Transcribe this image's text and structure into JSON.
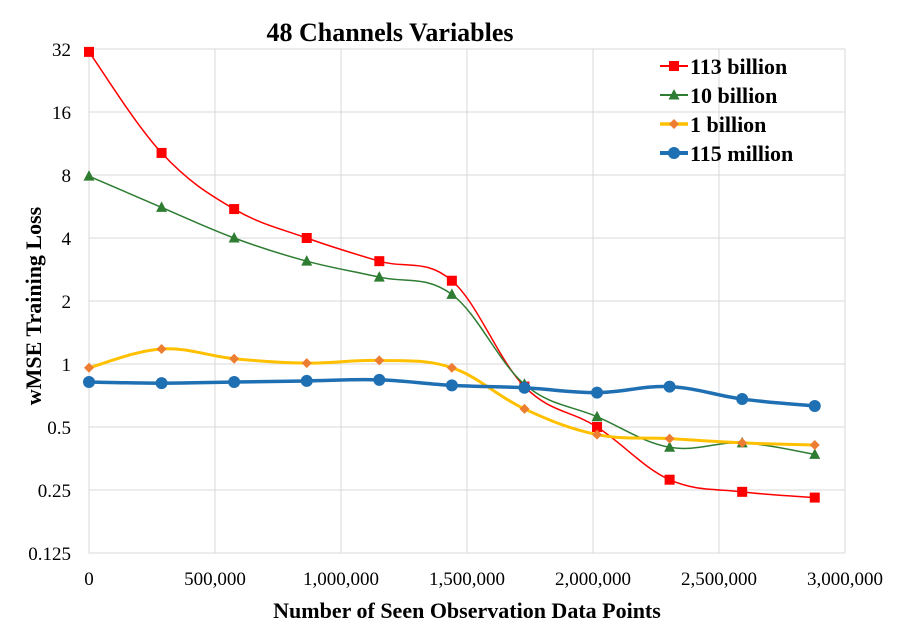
{
  "chart_data": {
    "type": "line",
    "title": "48 Channels Variables",
    "xlabel": "Number of Seen Observation Data Points",
    "ylabel": "wMSE Training Loss",
    "yscale": "log2",
    "xlim": [
      0,
      3000000
    ],
    "ylim": [
      0.125,
      32
    ],
    "x_ticks": [
      0,
      500000,
      1000000,
      1500000,
      2000000,
      2500000,
      3000000
    ],
    "x_tick_labels": [
      "0",
      "500,000",
      "1,000,000",
      "1,500,000",
      "2,000,000",
      "2,500,000",
      "3,000,000"
    ],
    "y_ticks": [
      0.125,
      0.25,
      0.5,
      1,
      2,
      4,
      8,
      16,
      32
    ],
    "y_tick_labels": [
      "0.125",
      "0.25",
      "0.5",
      "1",
      "2",
      "4",
      "8",
      "16",
      "32"
    ],
    "grid": true,
    "legend_position": "top-right",
    "x": [
      0,
      288000,
      576000,
      864000,
      1152000,
      1440000,
      1728000,
      2016000,
      2304000,
      2592000,
      2880000
    ],
    "series": [
      {
        "name": "113 billion",
        "color": "#ff0000",
        "line_color": "#ff0000",
        "marker": "square",
        "values": [
          31,
          10.2,
          5.5,
          4.0,
          3.1,
          2.5,
          0.78,
          0.5,
          0.28,
          0.245,
          0.23
        ]
      },
      {
        "name": "10 billion",
        "color": "#2e7d32",
        "line_color": "#2e7d32",
        "marker": "triangle",
        "values": [
          7.9,
          5.6,
          4.0,
          3.1,
          2.6,
          2.15,
          0.8,
          0.56,
          0.4,
          0.42,
          0.37
        ]
      },
      {
        "name": "1 billion",
        "color": "#ed7d31",
        "line_color": "#ffc000",
        "marker": "diamond",
        "values": [
          0.96,
          1.18,
          1.06,
          1.01,
          1.04,
          0.96,
          0.61,
          0.46,
          0.44,
          0.42,
          0.41
        ]
      },
      {
        "name": "115 million",
        "color": "#1f6fb3",
        "line_color": "#1f6fb3",
        "marker": "circle",
        "values": [
          0.82,
          0.81,
          0.82,
          0.83,
          0.84,
          0.79,
          0.77,
          0.73,
          0.78,
          0.68,
          0.63
        ]
      }
    ]
  }
}
